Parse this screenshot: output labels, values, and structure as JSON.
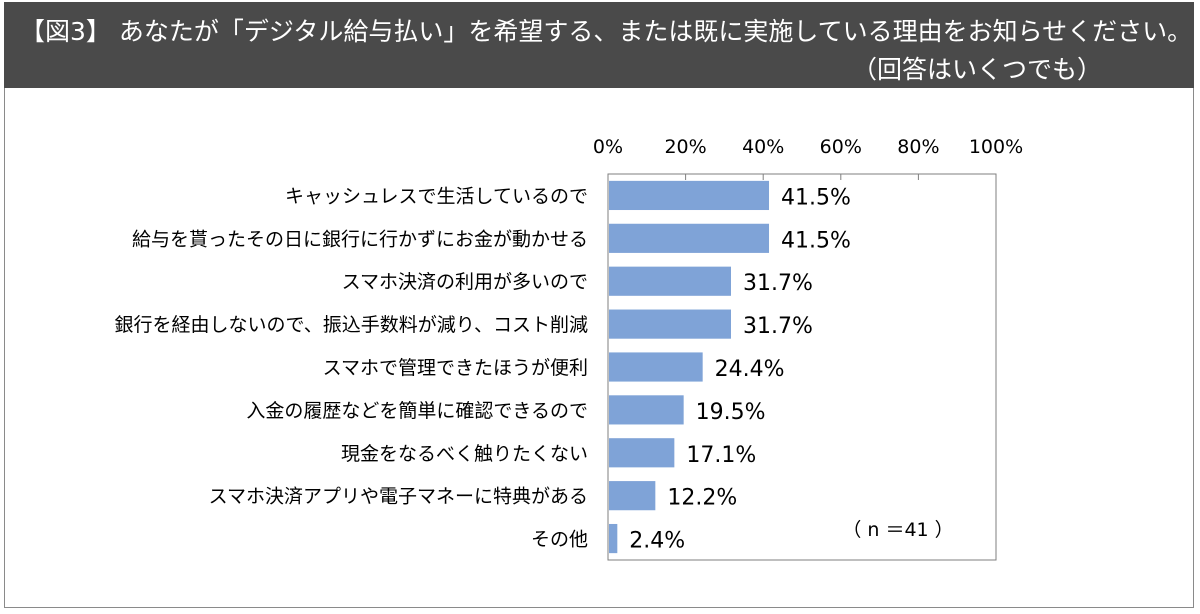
{
  "header": {
    "title": "【図3】 あなたが「デジタル給与払い」を希望する、または既に実施している理由をお知らせください。",
    "subtitle": "（回答はいくつでも）"
  },
  "colors": {
    "bar": "#7fa3d7",
    "header_bg": "#4a4a4a"
  },
  "chart_data": {
    "type": "bar",
    "orientation": "horizontal",
    "categories": [
      "キャッシュレスで生活しているので",
      "給与を貰ったその日に銀行に行かずにお金が動かせる",
      "スマホ決済の利用が多いので",
      "銀行を経由しないので、振込手数料が減り、コスト削減",
      "スマホで管理できたほうが便利",
      "入金の履歴などを簡単に確認できるので",
      "現金をなるべく触りたくない",
      "スマホ決済アプリや電子マネーに特典がある",
      "その他"
    ],
    "values": [
      41.5,
      41.5,
      31.7,
      31.7,
      24.4,
      19.5,
      17.1,
      12.2,
      2.4
    ],
    "value_labels": [
      "41.5%",
      "41.5%",
      "31.7%",
      "31.7%",
      "24.4%",
      "19.5%",
      "17.1%",
      "12.2%",
      "2.4%"
    ],
    "xlim": [
      0,
      100
    ],
    "ticks": [
      "0%",
      "20%",
      "40%",
      "60%",
      "80%",
      "100%"
    ],
    "tick_values": [
      0,
      20,
      40,
      60,
      80,
      100
    ],
    "note": "（ n ＝41 ）"
  }
}
